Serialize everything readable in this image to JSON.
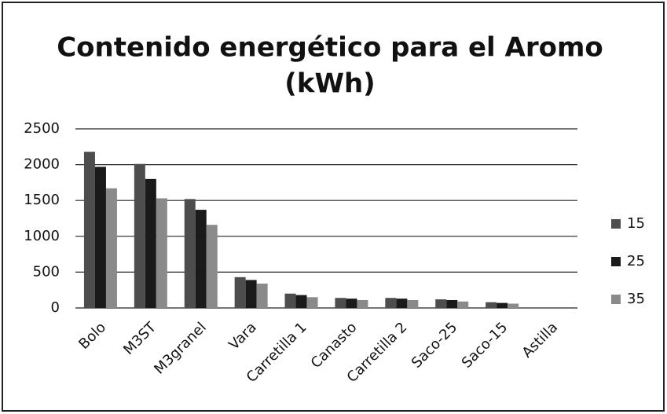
{
  "chart_data": {
    "type": "bar",
    "title": [
      "Contenido energético para el Aromo",
      "(kWh)"
    ],
    "categories": [
      "Bolo",
      "M3ST",
      "M3granel",
      "Vara",
      "Carretilla 1",
      "Canasto",
      "Carretilla 2",
      "Saco-25",
      "Saco-15",
      "Astilla"
    ],
    "series": [
      {
        "name": "15",
        "color": "#4d4d4d",
        "values": [
          2180,
          2010,
          1520,
          430,
          200,
          140,
          140,
          120,
          80,
          0
        ]
      },
      {
        "name": "25",
        "color": "#1a1a1a",
        "values": [
          1970,
          1800,
          1370,
          390,
          180,
          130,
          130,
          110,
          70,
          0
        ]
      },
      {
        "name": "35",
        "color": "#8a8a8a",
        "values": [
          1670,
          1530,
          1160,
          340,
          150,
          110,
          110,
          90,
          60,
          0
        ]
      }
    ],
    "ylim": [
      0,
      2500
    ],
    "yticks": [
      0,
      500,
      1000,
      1500,
      2000,
      2500
    ],
    "grid": true,
    "legend": "right"
  }
}
